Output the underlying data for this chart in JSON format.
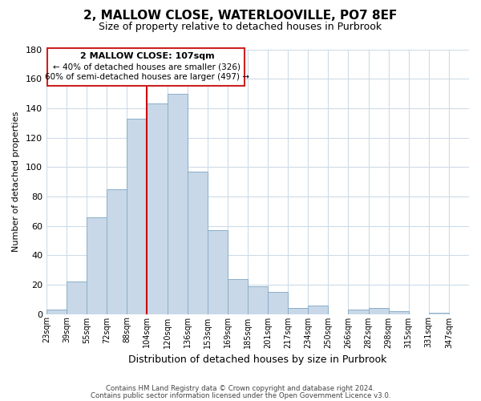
{
  "title": "2, MALLOW CLOSE, WATERLOOVILLE, PO7 8EF",
  "subtitle": "Size of property relative to detached houses in Purbrook",
  "xlabel": "Distribution of detached houses by size in Purbrook",
  "ylabel": "Number of detached properties",
  "bin_labels": [
    "23sqm",
    "39sqm",
    "55sqm",
    "72sqm",
    "88sqm",
    "104sqm",
    "120sqm",
    "136sqm",
    "153sqm",
    "169sqm",
    "185sqm",
    "201sqm",
    "217sqm",
    "234sqm",
    "250sqm",
    "266sqm",
    "282sqm",
    "298sqm",
    "315sqm",
    "331sqm",
    "347sqm"
  ],
  "bar_heights": [
    3,
    22,
    66,
    85,
    133,
    143,
    150,
    97,
    57,
    24,
    19,
    15,
    4,
    6,
    0,
    3,
    4,
    2,
    0,
    1,
    0
  ],
  "bar_color": "#c8d8e8",
  "bar_edge_color": "#8aafc8",
  "vline_x": 5,
  "vline_color": "#cc0000",
  "ylim": [
    0,
    180
  ],
  "yticks": [
    0,
    20,
    40,
    60,
    80,
    100,
    120,
    140,
    160,
    180
  ],
  "annotation_title": "2 MALLOW CLOSE: 107sqm",
  "annotation_line1": "← 40% of detached houses are smaller (326)",
  "annotation_line2": "60% of semi-detached houses are larger (497) →",
  "footer1": "Contains HM Land Registry data © Crown copyright and database right 2024.",
  "footer2": "Contains public sector information licensed under the Open Government Licence v3.0.",
  "background_color": "#ffffff",
  "grid_color": "#cddbe8"
}
